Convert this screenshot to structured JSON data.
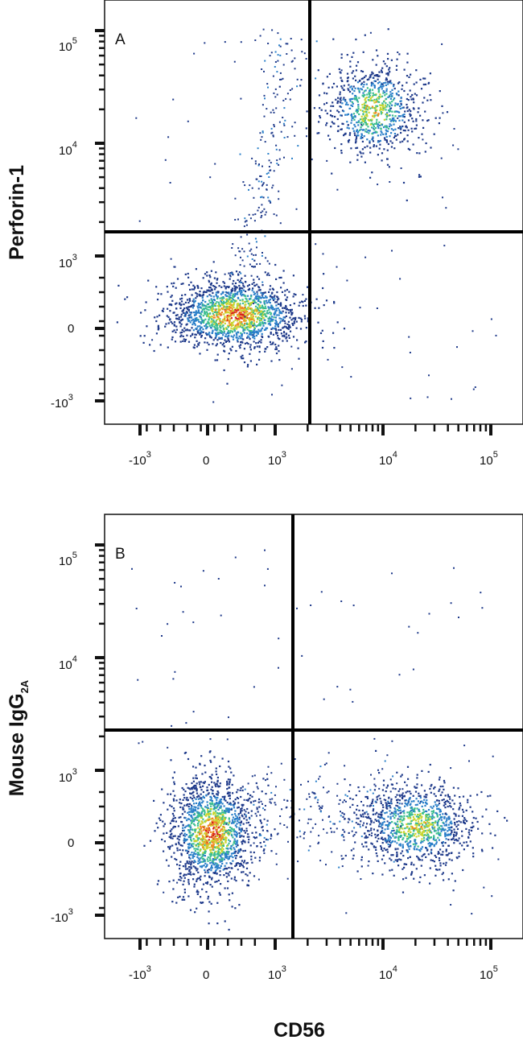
{
  "chart_data": [
    {
      "type": "scatter",
      "panel": "A",
      "xlabel": "CD56",
      "ylabel": "Perforin-1",
      "x_ticks": [
        {
          "base": "-10",
          "exp": "3"
        },
        {
          "base": "0",
          "exp": ""
        },
        {
          "base": "10",
          "exp": "3"
        },
        {
          "base": "10",
          "exp": "4"
        },
        {
          "base": "10",
          "exp": "5"
        }
      ],
      "y_ticks": [
        {
          "base": "10",
          "exp": "5"
        },
        {
          "base": "10",
          "exp": "4"
        },
        {
          "base": "10",
          "exp": "3"
        },
        {
          "base": "0",
          "exp": ""
        },
        {
          "base": "-10",
          "exp": "3"
        }
      ],
      "x_scale": "biexponential",
      "y_scale": "biexponential",
      "gate": {
        "x": 2000,
        "y": 2200
      },
      "populations": [
        {
          "name": "",
          "center_x": 400,
          "center_y": 200,
          "share": 0.62
        },
        {
          "name": "",
          "center_x": 8000,
          "center_y": 20000,
          "share": 0.32
        }
      ],
      "color_scale": [
        "#1f3a8a",
        "#2a7fc9",
        "#3bbd8f",
        "#c9d62f",
        "#f08a24",
        "#d62020"
      ]
    },
    {
      "type": "scatter",
      "panel": "B",
      "xlabel": "CD56",
      "ylabel": "Mouse IgG",
      "ylabel_subscript": "2A",
      "x_ticks": [
        {
          "base": "-10",
          "exp": "3"
        },
        {
          "base": "0",
          "exp": ""
        },
        {
          "base": "10",
          "exp": "3"
        },
        {
          "base": "10",
          "exp": "4"
        },
        {
          "base": "10",
          "exp": "5"
        }
      ],
      "y_ticks": [
        {
          "base": "10",
          "exp": "5"
        },
        {
          "base": "10",
          "exp": "4"
        },
        {
          "base": "10",
          "exp": "3"
        },
        {
          "base": "0",
          "exp": ""
        },
        {
          "base": "-10",
          "exp": "3"
        }
      ],
      "x_scale": "biexponential",
      "y_scale": "biexponential",
      "gate": {
        "x": 1500,
        "y": 2200
      },
      "populations": [
        {
          "name": "",
          "center_x": 50,
          "center_y": 150,
          "share": 0.58
        },
        {
          "name": "",
          "center_x": 20000,
          "center_y": 250,
          "share": 0.4
        }
      ],
      "color_scale": [
        "#1f3a8a",
        "#2a7fc9",
        "#3bbd8f",
        "#c9d62f",
        "#f08a24",
        "#d62020"
      ]
    }
  ]
}
